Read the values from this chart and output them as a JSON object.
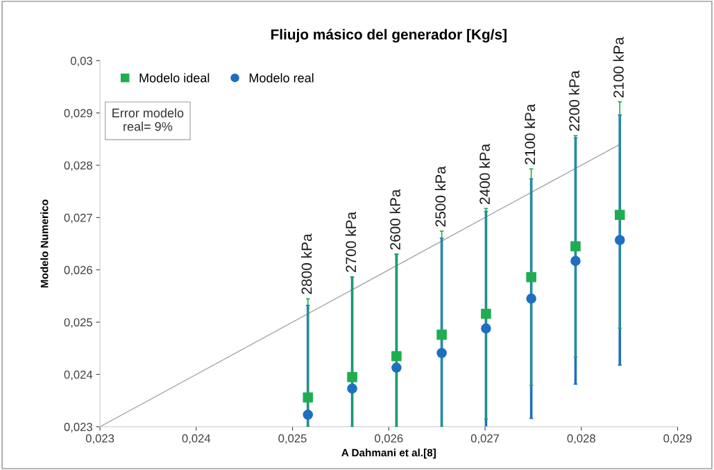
{
  "chart_data": {
    "type": "scatter",
    "title": "Fliujo másico del generador [Kg/s]",
    "xlabel": "A Dahmani et al.[8]",
    "ylabel": "Modelo Numerico",
    "x": [
      0.02516,
      0.02562,
      0.02608,
      0.02655,
      0.02701,
      0.02748,
      0.02794,
      0.0284
    ],
    "series": [
      {
        "name": "Modelo ideal",
        "color": "#1fae4f",
        "marker": "square",
        "values": [
          0.02356,
          0.02395,
          0.02435,
          0.02476,
          0.02516,
          0.02586,
          0.02645,
          0.02705
        ],
        "errors": [
          [
            0.023,
            0.025445
          ],
          [
            0.023,
            0.025866
          ],
          [
            0.023,
            0.026298
          ],
          [
            0.023,
            0.026741
          ],
          0.002013,
          0.002069,
          0.002116,
          0.002164
        ]
      },
      {
        "name": "Modelo real",
        "color": "#1f6fc0",
        "marker": "circle",
        "values": [
          0.02323,
          0.02373,
          0.02413,
          0.02441,
          0.02488,
          0.02545,
          0.02617,
          0.02657
        ],
        "errors": [
          [
            0.023,
            0.025321
          ],
          [
            0.023,
            0.025866
          ],
          [
            0.023,
            0.026302
          ],
          [
            0.023,
            0.026607
          ],
          [
            0.023,
            0.027119
          ],
          0.002291,
          0.002355,
          0.002391
        ]
      },
      {
        "type": "line",
        "color": "#a6a6a6",
        "marker": "none",
        "x": [
          0.023,
          0.0284
        ],
        "values": [
          0.023,
          0.0284
        ]
      }
    ],
    "xlim": [
      0.023,
      0.029
    ],
    "ylim": [
      0.023,
      0.03
    ],
    "xticks": [
      {
        "value": 0.023,
        "label": "0,023"
      },
      {
        "value": 0.024,
        "label": "0,024"
      },
      {
        "value": 0.025,
        "label": "0,025"
      },
      {
        "value": 0.026,
        "label": "0,026"
      },
      {
        "value": 0.027,
        "label": "0,027"
      },
      {
        "value": 0.028,
        "label": "0,028"
      },
      {
        "value": 0.029,
        "label": "0,029"
      }
    ],
    "yticks": [
      {
        "value": 0.023,
        "label": "0,023"
      },
      {
        "value": 0.024,
        "label": "0,024"
      },
      {
        "value": 0.025,
        "label": "0,025"
      },
      {
        "value": 0.026,
        "label": "0,026"
      },
      {
        "value": 0.027,
        "label": "0,027"
      },
      {
        "value": 0.028,
        "label": "0,028"
      },
      {
        "value": 0.029,
        "label": "0,029"
      },
      {
        "value": 0.03,
        "label": "0,03"
      }
    ],
    "legend": "top left",
    "annotations": [
      {
        "text": "2800 kPa",
        "x": 0.02516,
        "y": 0.02545
      },
      {
        "text": "2700 kPa",
        "x": 0.02562,
        "y": 0.02587
      },
      {
        "text": "2600 kPa",
        "x": 0.02608,
        "y": 0.0263
      },
      {
        "text": "2500 kPa",
        "x": 0.02655,
        "y": 0.02674
      },
      {
        "text": "2400 kPa",
        "x": 0.02701,
        "y": 0.02717
      },
      {
        "text": "2100 kPa",
        "x": 0.02748,
        "y": 0.02793
      },
      {
        "text": "2200 kPa",
        "x": 0.02794,
        "y": 0.02857
      },
      {
        "text": "2100 kPa",
        "x": 0.0284,
        "y": 0.02921
      },
      "Error modelo\nreal= 9%"
    ]
  }
}
